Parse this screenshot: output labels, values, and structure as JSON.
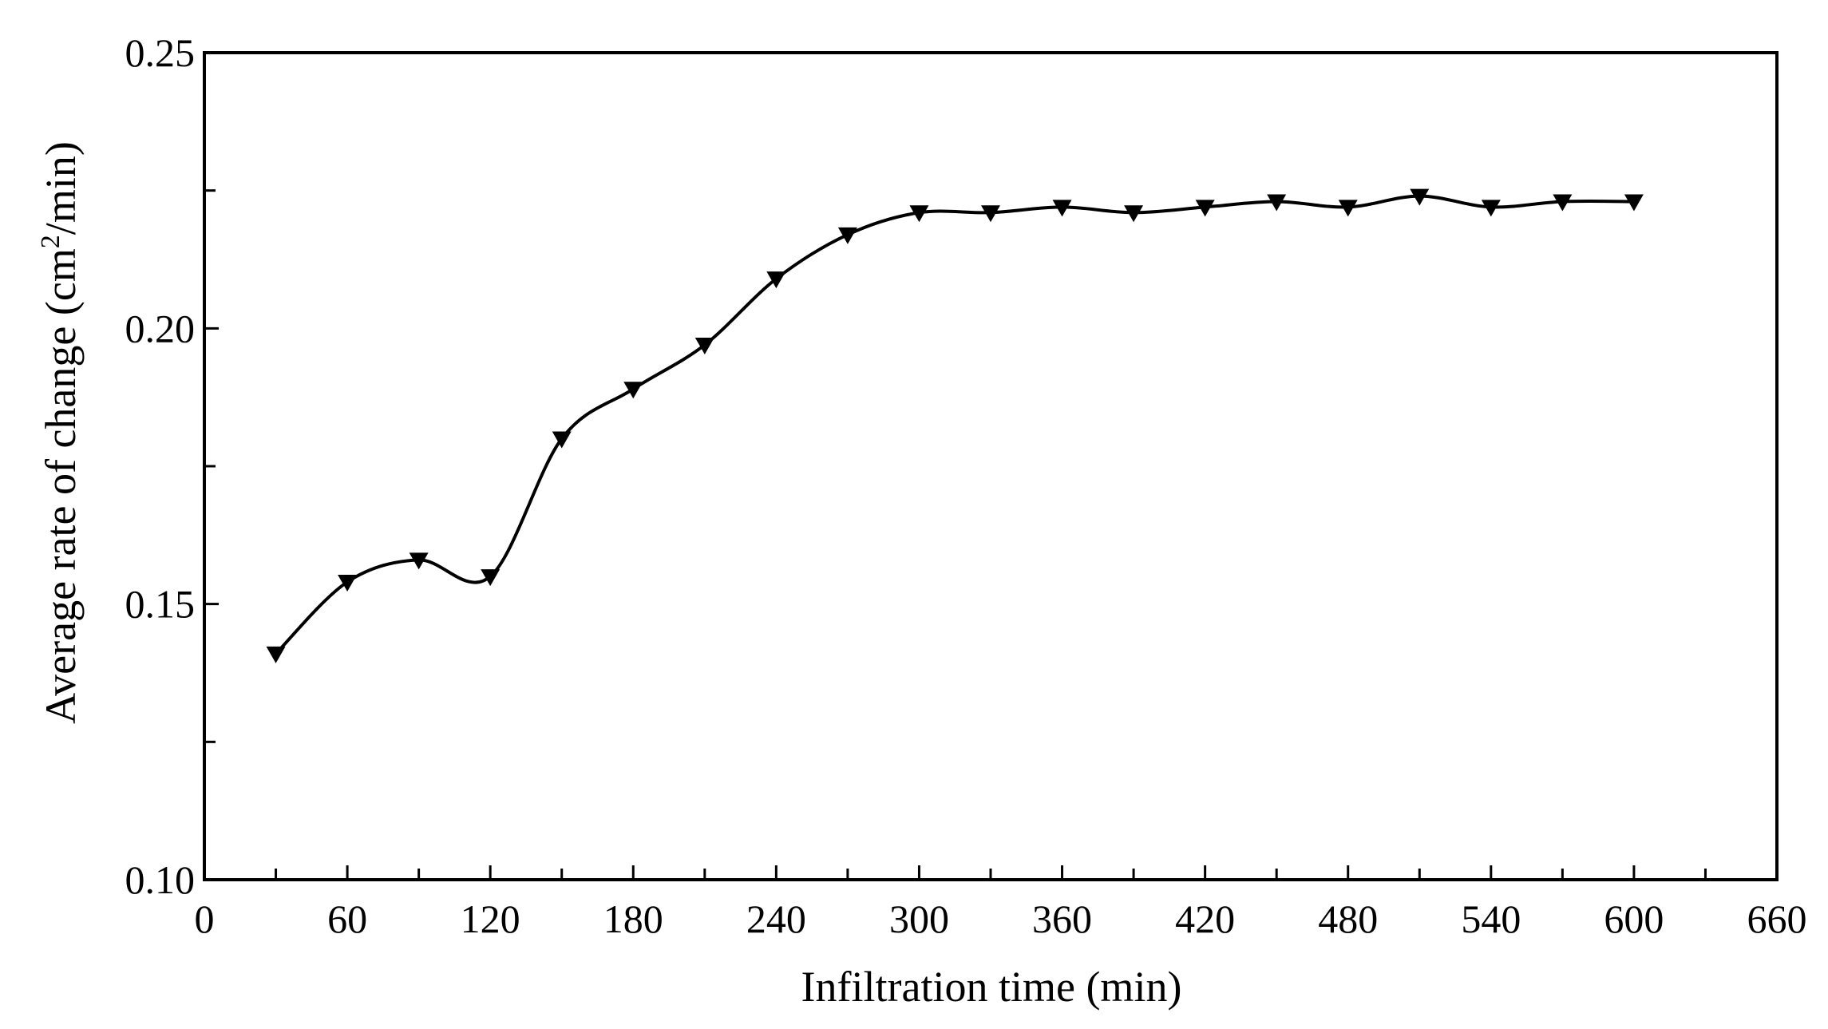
{
  "chart_data": {
    "type": "line",
    "xlabel": "Infiltration time (min)",
    "ylabel_main": "Average rate of change (cm",
    "ylabel_sup": "2",
    "ylabel_end": "/min)",
    "xlim": [
      0,
      660
    ],
    "ylim": [
      0.1,
      0.25
    ],
    "x_ticks": [
      0,
      60,
      120,
      180,
      240,
      300,
      360,
      420,
      480,
      540,
      600,
      660
    ],
    "x_tick_labels": [
      "0",
      "60",
      "120",
      "180",
      "240",
      "300",
      "360",
      "420",
      "480",
      "540",
      "600",
      "660"
    ],
    "x_minor_ticks": [
      30,
      90,
      150,
      210,
      270,
      330,
      390,
      450,
      510,
      570,
      630
    ],
    "y_ticks": [
      0.1,
      0.15,
      0.2,
      0.25
    ],
    "y_tick_labels": [
      "0.10",
      "0.15",
      "0.20",
      "0.25"
    ],
    "y_minor_ticks": [
      0.125,
      0.175,
      0.225
    ],
    "grid": false,
    "marker": "triangle-down",
    "line_color": "#000000",
    "series": [
      {
        "x": [
          30,
          60,
          90,
          120,
          150,
          180,
          210,
          240,
          270,
          300,
          330,
          360,
          390,
          420,
          450,
          480,
          510,
          540,
          570,
          600
        ],
        "y": [
          0.141,
          0.154,
          0.158,
          0.155,
          0.18,
          0.189,
          0.197,
          0.209,
          0.217,
          0.221,
          0.221,
          0.222,
          0.221,
          0.222,
          0.223,
          0.222,
          0.224,
          0.222,
          0.223,
          0.223
        ]
      }
    ]
  }
}
